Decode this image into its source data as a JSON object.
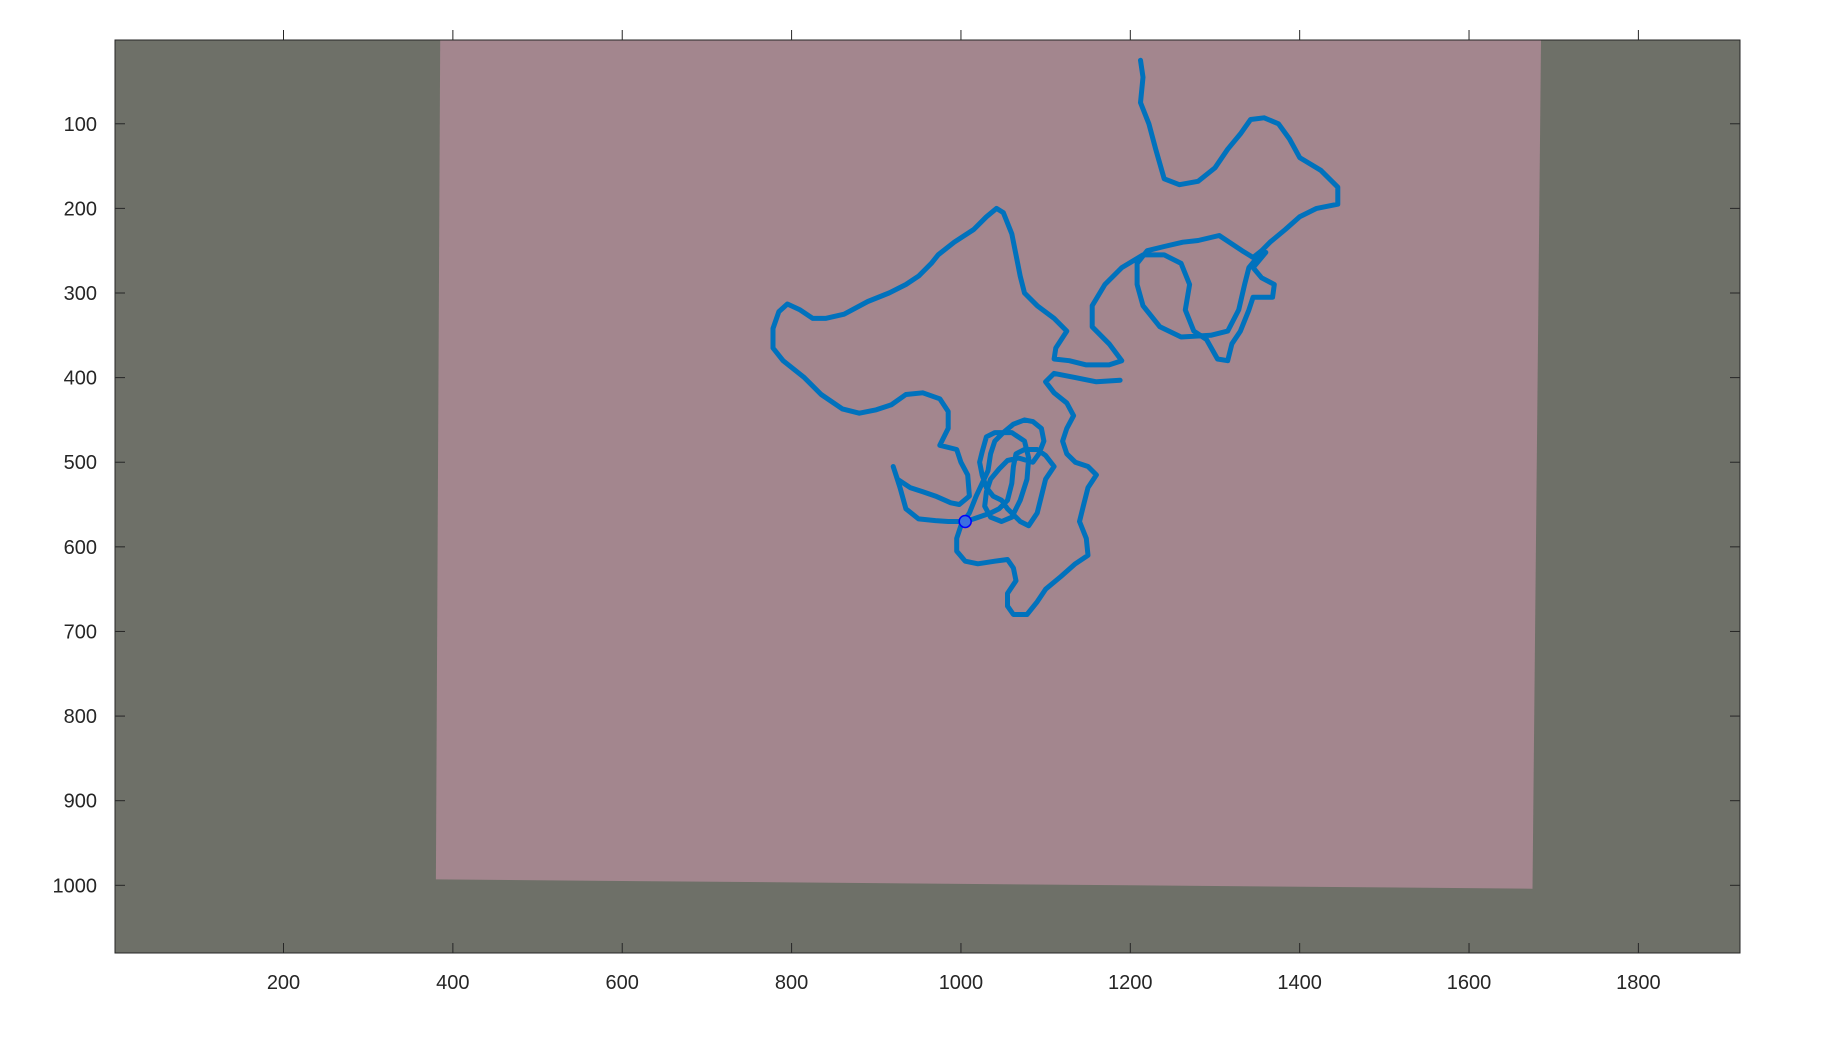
{
  "chart_data": {
    "type": "line",
    "title": "",
    "xlabel": "",
    "ylabel": "",
    "xlim": [
      1,
      1920
    ],
    "ylim": [
      1,
      1080
    ],
    "y_axis_reversed": true,
    "grid": false,
    "x_ticks": [
      200,
      400,
      600,
      800,
      1000,
      1200,
      1400,
      1600,
      1800
    ],
    "y_ticks": [
      100,
      200,
      300,
      400,
      500,
      600,
      700,
      800,
      900,
      1000
    ],
    "background_image": {
      "surface_color": "#6e7068",
      "sheet_color": "#a3868e",
      "sheet_corners": [
        [
          385,
          1
        ],
        [
          1685,
          1
        ],
        [
          1675,
          1004
        ],
        [
          380,
          993
        ]
      ]
    },
    "series": [
      {
        "color": "#0072bd",
        "points": [
          [
            1212,
            25
          ],
          [
            1215,
            45
          ],
          [
            1212,
            75
          ],
          [
            1222,
            100
          ],
          [
            1230,
            130
          ],
          [
            1240,
            165
          ],
          [
            1258,
            172
          ],
          [
            1280,
            168
          ],
          [
            1300,
            152
          ],
          [
            1315,
            130
          ],
          [
            1330,
            112
          ],
          [
            1342,
            95
          ],
          [
            1358,
            93
          ],
          [
            1375,
            100
          ],
          [
            1388,
            118
          ],
          [
            1400,
            140
          ],
          [
            1425,
            155
          ],
          [
            1445,
            175
          ],
          [
            1445,
            195
          ],
          [
            1420,
            200
          ],
          [
            1400,
            210
          ],
          [
            1383,
            225
          ],
          [
            1365,
            240
          ],
          [
            1355,
            250
          ],
          [
            1345,
            258
          ],
          [
            1332,
            250
          ],
          [
            1305,
            232
          ],
          [
            1280,
            238
          ],
          [
            1262,
            240
          ],
          [
            1240,
            245
          ],
          [
            1220,
            250
          ],
          [
            1208,
            265
          ],
          [
            1208,
            290
          ],
          [
            1215,
            315
          ],
          [
            1235,
            340
          ],
          [
            1260,
            352
          ],
          [
            1295,
            350
          ],
          [
            1315,
            345
          ],
          [
            1328,
            320
          ],
          [
            1335,
            290
          ],
          [
            1340,
            270
          ],
          [
            1350,
            258
          ],
          [
            1360,
            252
          ],
          [
            1345,
            270
          ],
          [
            1355,
            282
          ],
          [
            1370,
            290
          ],
          [
            1368,
            305
          ],
          [
            1345,
            305
          ],
          [
            1340,
            320
          ],
          [
            1330,
            345
          ],
          [
            1320,
            360
          ],
          [
            1315,
            380
          ],
          [
            1303,
            378
          ],
          [
            1290,
            355
          ],
          [
            1275,
            345
          ],
          [
            1265,
            320
          ],
          [
            1270,
            290
          ],
          [
            1260,
            265
          ],
          [
            1240,
            255
          ],
          [
            1215,
            255
          ],
          [
            1190,
            270
          ],
          [
            1170,
            290
          ],
          [
            1155,
            315
          ],
          [
            1155,
            340
          ],
          [
            1175,
            360
          ],
          [
            1190,
            380
          ],
          [
            1175,
            385
          ],
          [
            1148,
            385
          ],
          [
            1128,
            380
          ],
          [
            1110,
            378
          ],
          [
            1112,
            365
          ],
          [
            1125,
            345
          ],
          [
            1110,
            330
          ],
          [
            1090,
            315
          ],
          [
            1075,
            300
          ],
          [
            1070,
            280
          ],
          [
            1065,
            255
          ],
          [
            1060,
            230
          ],
          [
            1050,
            205
          ],
          [
            1042,
            200
          ],
          [
            1030,
            210
          ],
          [
            1015,
            225
          ],
          [
            992,
            240
          ],
          [
            973,
            255
          ],
          [
            965,
            265
          ],
          [
            950,
            280
          ],
          [
            935,
            290
          ],
          [
            915,
            300
          ],
          [
            890,
            310
          ],
          [
            862,
            325
          ],
          [
            840,
            330
          ],
          [
            825,
            330
          ],
          [
            810,
            320
          ],
          [
            795,
            313
          ],
          [
            785,
            322
          ],
          [
            778,
            342
          ],
          [
            778,
            365
          ],
          [
            790,
            380
          ],
          [
            815,
            400
          ],
          [
            835,
            420
          ],
          [
            860,
            437
          ],
          [
            880,
            442
          ],
          [
            900,
            438
          ],
          [
            918,
            432
          ],
          [
            935,
            420
          ],
          [
            955,
            418
          ],
          [
            975,
            425
          ],
          [
            985,
            440
          ],
          [
            985,
            460
          ],
          [
            975,
            480
          ],
          [
            995,
            485
          ],
          [
            1000,
            500
          ],
          [
            1008,
            515
          ],
          [
            1010,
            540
          ],
          [
            998,
            550
          ],
          [
            988,
            548
          ],
          [
            970,
            540
          ],
          [
            955,
            535
          ],
          [
            940,
            530
          ],
          [
            925,
            520
          ],
          [
            920,
            505
          ],
          [
            928,
            530
          ],
          [
            935,
            555
          ],
          [
            950,
            567
          ],
          [
            970,
            569
          ],
          [
            985,
            570
          ],
          [
            1005,
            570
          ],
          [
            1015,
            567
          ],
          [
            1035,
            560
          ],
          [
            1045,
            555
          ],
          [
            1055,
            545
          ],
          [
            1060,
            525
          ],
          [
            1062,
            505
          ],
          [
            1065,
            490
          ],
          [
            1075,
            485
          ],
          [
            1090,
            485
          ],
          [
            1100,
            492
          ],
          [
            1110,
            505
          ],
          [
            1100,
            520
          ],
          [
            1095,
            540
          ],
          [
            1090,
            560
          ],
          [
            1080,
            575
          ],
          [
            1070,
            570
          ],
          [
            1060,
            560
          ],
          [
            1055,
            555
          ],
          [
            1048,
            545
          ],
          [
            1038,
            540
          ],
          [
            1030,
            530
          ],
          [
            1025,
            515
          ],
          [
            1022,
            500
          ],
          [
            1025,
            488
          ],
          [
            1030,
            470
          ],
          [
            1040,
            465
          ],
          [
            1060,
            465
          ],
          [
            1075,
            475
          ],
          [
            1080,
            495
          ],
          [
            1078,
            520
          ],
          [
            1070,
            545
          ],
          [
            1060,
            565
          ],
          [
            1048,
            570
          ],
          [
            1035,
            565
          ],
          [
            1028,
            552
          ],
          [
            1030,
            535
          ],
          [
            1035,
            520
          ],
          [
            1045,
            508
          ],
          [
            1055,
            498
          ],
          [
            1068,
            495
          ],
          [
            1085,
            500
          ],
          [
            1092,
            490
          ],
          [
            1098,
            475
          ],
          [
            1095,
            460
          ],
          [
            1085,
            452
          ],
          [
            1075,
            450
          ],
          [
            1062,
            455
          ],
          [
            1050,
            465
          ],
          [
            1040,
            475
          ],
          [
            1035,
            490
          ],
          [
            1032,
            510
          ],
          [
            1025,
            525
          ],
          [
            1018,
            540
          ],
          [
            1010,
            560
          ],
          [
            1000,
            575
          ],
          [
            995,
            590
          ],
          [
            995,
            605
          ],
          [
            1005,
            617
          ],
          [
            1020,
            620
          ],
          [
            1040,
            617
          ],
          [
            1055,
            615
          ],
          [
            1062,
            625
          ],
          [
            1065,
            640
          ],
          [
            1055,
            655
          ],
          [
            1055,
            670
          ],
          [
            1062,
            680
          ],
          [
            1078,
            680
          ],
          [
            1090,
            665
          ],
          [
            1100,
            650
          ],
          [
            1118,
            635
          ],
          [
            1135,
            620
          ],
          [
            1150,
            610
          ],
          [
            1148,
            590
          ],
          [
            1140,
            570
          ],
          [
            1145,
            550
          ],
          [
            1150,
            530
          ],
          [
            1160,
            515
          ],
          [
            1150,
            505
          ],
          [
            1135,
            500
          ],
          [
            1125,
            490
          ],
          [
            1120,
            475
          ],
          [
            1125,
            460
          ],
          [
            1133,
            445
          ],
          [
            1125,
            430
          ],
          [
            1110,
            418
          ],
          [
            1100,
            405
          ],
          [
            1110,
            395
          ],
          [
            1135,
            400
          ],
          [
            1160,
            405
          ],
          [
            1188,
            403
          ]
        ]
      }
    ],
    "marker": {
      "x": 1005,
      "y": 570,
      "color": "#0000ff"
    }
  }
}
